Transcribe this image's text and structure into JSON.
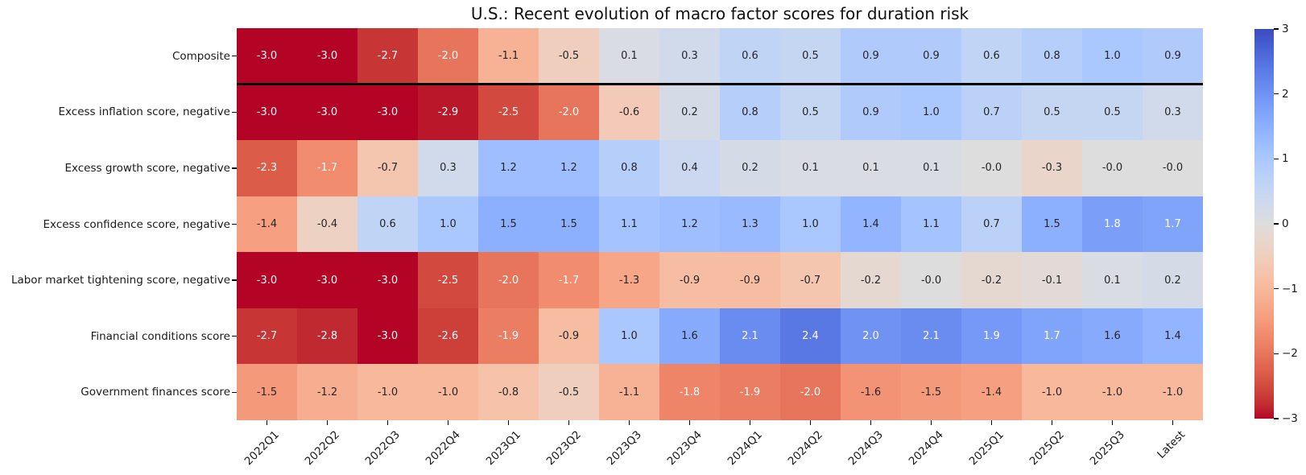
{
  "chart_data": {
    "type": "heatmap",
    "title": "U.S.: Recent evolution of macro factor scores for duration risk",
    "columns": [
      "2022Q1",
      "2022Q2",
      "2022Q3",
      "2022Q4",
      "2023Q1",
      "2023Q2",
      "2023Q3",
      "2023Q4",
      "2024Q1",
      "2024Q2",
      "2024Q3",
      "2024Q4",
      "2025Q1",
      "2025Q2",
      "2025Q3",
      "Latest"
    ],
    "rows": [
      {
        "label": "Composite",
        "values": [
          -3.0,
          -3.0,
          -2.7,
          -2.0,
          -1.1,
          -0.5,
          0.1,
          0.3,
          0.6,
          0.5,
          0.9,
          0.9,
          0.6,
          0.8,
          1.0,
          0.9
        ]
      },
      {
        "label": "Excess inflation score, negative",
        "values": [
          -3.0,
          -3.0,
          -3.0,
          -2.9,
          -2.5,
          -2.0,
          -0.6,
          0.2,
          0.8,
          0.5,
          0.9,
          1.0,
          0.7,
          0.5,
          0.5,
          0.3
        ]
      },
      {
        "label": "Excess growth score, negative",
        "values": [
          -2.3,
          -1.7,
          -0.7,
          0.3,
          1.2,
          1.2,
          0.8,
          0.4,
          0.2,
          0.1,
          0.1,
          0.1,
          -0.0,
          -0.3,
          -0.0,
          -0.0
        ]
      },
      {
        "label": "Excess confidence score, negative",
        "values": [
          -1.4,
          -0.4,
          0.6,
          1.0,
          1.5,
          1.5,
          1.1,
          1.2,
          1.3,
          1.0,
          1.4,
          1.1,
          0.7,
          1.5,
          1.8,
          1.7
        ]
      },
      {
        "label": "Labor market tightening score, negative",
        "values": [
          -3.0,
          -3.0,
          -3.0,
          -2.5,
          -2.0,
          -1.7,
          -1.3,
          -0.9,
          -0.9,
          -0.7,
          -0.2,
          -0.0,
          -0.2,
          -0.1,
          0.1,
          0.2
        ]
      },
      {
        "label": "Financial conditions score",
        "values": [
          -2.7,
          -2.8,
          -3.0,
          -2.6,
          -1.9,
          -0.9,
          1.0,
          1.6,
          2.1,
          2.4,
          2.0,
          2.1,
          1.9,
          1.7,
          1.6,
          1.4
        ]
      },
      {
        "label": "Government finances score",
        "values": [
          -1.5,
          -1.2,
          -1.0,
          -1.0,
          -0.8,
          -0.5,
          -1.1,
          -1.8,
          -1.9,
          -2.0,
          -1.6,
          -1.5,
          -1.4,
          -1.0,
          -1.0,
          -1.0
        ]
      }
    ],
    "separator_after_row_index": 0,
    "vmin": -3,
    "vmax": 3,
    "colormap": "coolwarm reversed (blue = high, red = low)",
    "colorbar_tick_labels": [
      "3",
      "2",
      "1",
      "0",
      "−1",
      "−2",
      "−3"
    ],
    "annotation_decimals": 1,
    "annotation_dark_color": "#262626",
    "annotation_light_color": "#ffffff",
    "colormap_endpoints": {
      "high_blue": "#3b4cc0",
      "mid": "#dddddd",
      "low_red": "#b40426"
    },
    "legend_position": "right colorbar",
    "grid": false
  }
}
